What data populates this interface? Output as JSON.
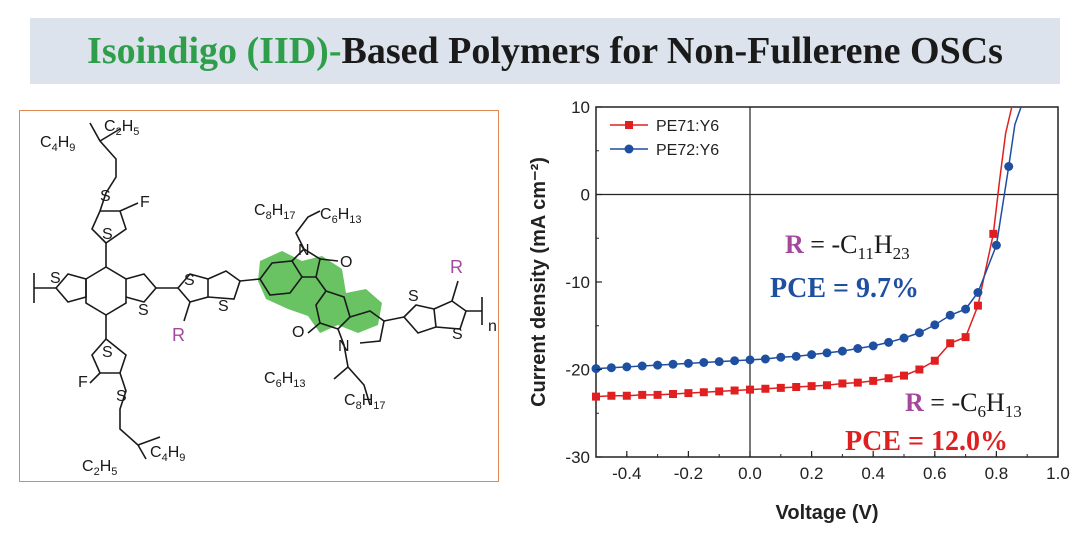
{
  "header": {
    "title_highlight": "Isoindigo (IID)-",
    "title_rest": "Based Polymers for Non-Fullerene OSCs",
    "highlight_color": "#2f9e4a"
  },
  "structure": {
    "labels": {
      "c4h9": [
        "C",
        "4",
        "H",
        "9"
      ],
      "c2h5": [
        "C",
        "2",
        "H",
        "5"
      ],
      "c8h17": [
        "C",
        "8",
        "H",
        "17"
      ],
      "c6h13": [
        "C",
        "6",
        "H",
        "13"
      ],
      "f": "F",
      "s": "S",
      "n_atom": "N",
      "o": "O",
      "r": "R",
      "repeat_n": "n"
    },
    "highlight_color": "#4fb848",
    "r_color": "#a4489c"
  },
  "chart_data": {
    "type": "scatter",
    "xlabel": "Voltage (V)",
    "ylabel": "Current density (mA cm⁻²)",
    "xlim": [
      -0.5,
      1.0
    ],
    "ylim": [
      -30,
      10
    ],
    "xticks": [
      -0.4,
      -0.2,
      0.0,
      0.2,
      0.4,
      0.6,
      0.8,
      1.0
    ],
    "xtick_labels": [
      "-0.4",
      "-0.2",
      "0.0",
      "0.2",
      "0.4",
      "0.6",
      "0.8",
      "1.0"
    ],
    "yticks": [
      10,
      0,
      -10,
      -20,
      -30
    ],
    "ytick_labels": [
      "10",
      "0",
      "-10",
      "-20",
      "-30"
    ],
    "reference_lines": {
      "x": 0,
      "y": 0
    },
    "legend_position": "top-left",
    "series": [
      {
        "name": "PE71:Y6",
        "color": "#e02020",
        "marker": "square",
        "x": [
          -0.5,
          -0.45,
          -0.4,
          -0.35,
          -0.3,
          -0.25,
          -0.2,
          -0.15,
          -0.1,
          -0.05,
          0.0,
          0.05,
          0.1,
          0.15,
          0.2,
          0.25,
          0.3,
          0.35,
          0.4,
          0.45,
          0.5,
          0.55,
          0.6,
          0.65,
          0.7,
          0.74,
          0.79
        ],
        "y": [
          -23.1,
          -23.0,
          -23.0,
          -22.9,
          -22.9,
          -22.8,
          -22.7,
          -22.6,
          -22.5,
          -22.4,
          -22.3,
          -22.2,
          -22.1,
          -22.0,
          -21.9,
          -21.8,
          -21.6,
          -21.5,
          -21.3,
          -21.0,
          -20.7,
          -20.0,
          -19.0,
          -17.0,
          -16.3,
          -12.7,
          -4.5
        ],
        "line_x": [
          0.79,
          0.81,
          0.83,
          0.85
        ],
        "line_y": [
          -4.5,
          1.5,
          7.0,
          10.0
        ]
      },
      {
        "name": "PE72:Y6",
        "color": "#1f4fa0",
        "marker": "circle",
        "x": [
          -0.5,
          -0.45,
          -0.4,
          -0.35,
          -0.3,
          -0.25,
          -0.2,
          -0.15,
          -0.1,
          -0.05,
          0.0,
          0.05,
          0.1,
          0.15,
          0.2,
          0.25,
          0.3,
          0.35,
          0.4,
          0.45,
          0.5,
          0.55,
          0.6,
          0.65,
          0.7,
          0.74,
          0.8,
          0.84
        ],
        "y": [
          -19.9,
          -19.8,
          -19.7,
          -19.6,
          -19.5,
          -19.4,
          -19.3,
          -19.2,
          -19.1,
          -19.0,
          -18.9,
          -18.8,
          -18.6,
          -18.5,
          -18.3,
          -18.1,
          -17.9,
          -17.6,
          -17.3,
          -16.9,
          -16.4,
          -15.8,
          -14.9,
          -13.8,
          -13.1,
          -11.2,
          -5.8,
          3.2
        ],
        "line_x": [
          0.84,
          0.86,
          0.88
        ],
        "line_y": [
          3.2,
          8.0,
          10.0
        ]
      }
    ],
    "annotations": [
      {
        "r_label": "R",
        "eq": " = -C",
        "sub1": "11",
        "h": "H",
        "sub2": "23",
        "pce": "PCE = 9.7%",
        "color": "#1f4fa0"
      },
      {
        "r_label": "R",
        "eq": " = -C",
        "sub1": "6",
        "h": "H",
        "sub2": "13",
        "pce": "PCE = 12.0%",
        "color": "#e02020"
      }
    ]
  }
}
